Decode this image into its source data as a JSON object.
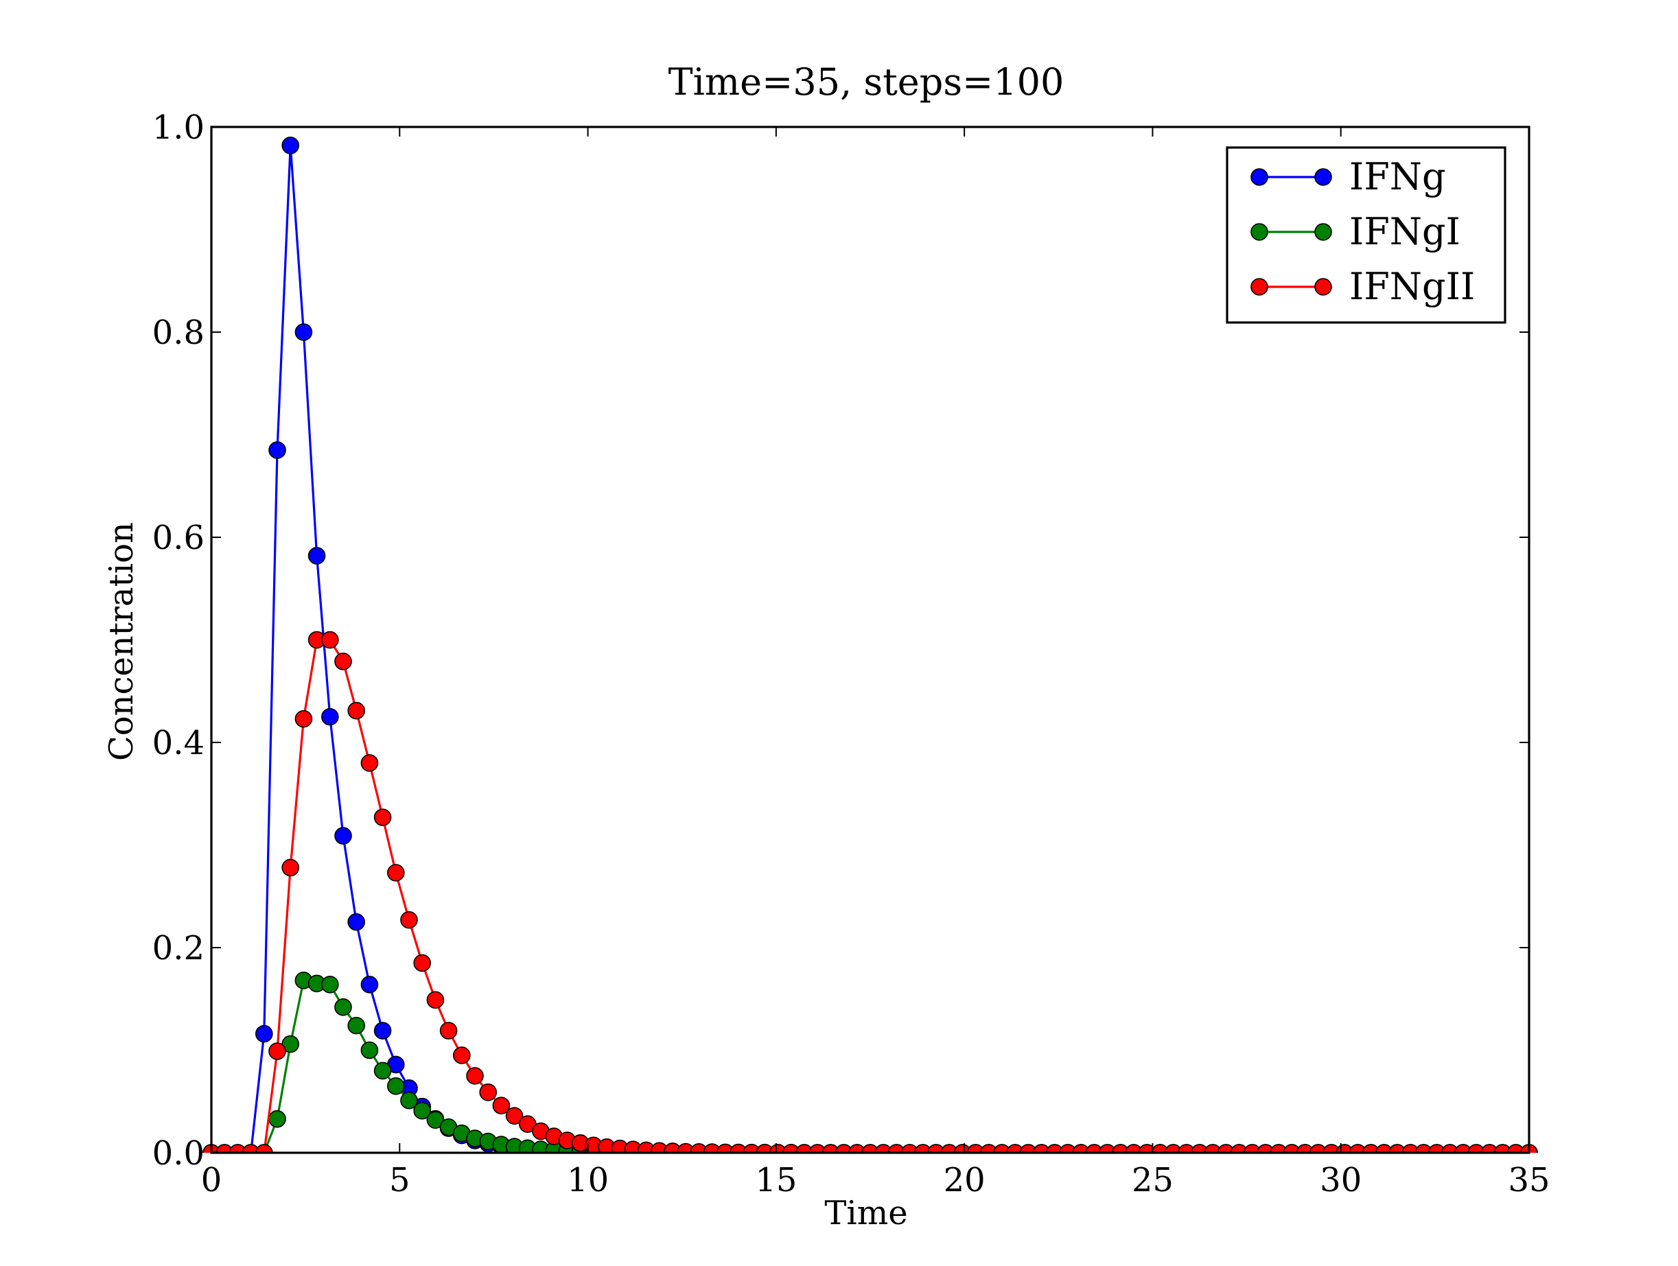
{
  "chart_data": {
    "type": "line",
    "title": "Time=35, steps=100",
    "xlabel": "Time",
    "ylabel": "Concentration",
    "xlim": [
      0,
      35
    ],
    "ylim": [
      0,
      1.0
    ],
    "xticks": [
      0,
      5,
      10,
      15,
      20,
      25,
      30,
      35
    ],
    "xtick_labels": [
      "0",
      "5",
      "10",
      "15",
      "20",
      "25",
      "30",
      "35"
    ],
    "yticks": [
      0,
      0.2,
      0.4,
      0.6,
      0.8,
      1.0
    ],
    "ytick_labels": [
      "0.0",
      "0.2",
      "0.4",
      "0.6",
      "0.8",
      "1.0"
    ],
    "grid": false,
    "legend_position": "top-right",
    "x": [
      0,
      0.35,
      0.7,
      1.05,
      1.4,
      1.75,
      2.1,
      2.45,
      2.8,
      3.15,
      3.5,
      3.85,
      4.2,
      4.55,
      4.9,
      5.25,
      5.6,
      5.95,
      6.3,
      6.65,
      7.0,
      7.35,
      7.7,
      8.05,
      8.4,
      8.75,
      9.1,
      9.45,
      9.8,
      10.15,
      10.5,
      10.85,
      11.2,
      11.55,
      11.9,
      12.25,
      12.6,
      12.95,
      13.3,
      13.65,
      14.0,
      14.35,
      14.7,
      15.05,
      15.4,
      15.75,
      16.1,
      16.45,
      16.8,
      17.15,
      17.5,
      17.85,
      18.2,
      18.55,
      18.9,
      19.25,
      19.6,
      19.95,
      20.3,
      20.65,
      21.0,
      21.35,
      21.7,
      22.05,
      22.4,
      22.75,
      23.1,
      23.45,
      23.8,
      24.15,
      24.5,
      24.85,
      25.2,
      25.55,
      25.9,
      26.25,
      26.6,
      26.95,
      27.3,
      27.65,
      28.0,
      28.35,
      28.7,
      29.05,
      29.4,
      29.75,
      30.1,
      30.45,
      30.8,
      31.15,
      31.5,
      31.85,
      32.2,
      32.55,
      32.9,
      33.25,
      33.6,
      33.95,
      34.3,
      34.65,
      35.0
    ],
    "series": [
      {
        "name": "IFNg",
        "color": "#0000ff",
        "values": [
          0,
          0,
          0,
          0,
          0.116,
          0.685,
          0.982,
          0.8,
          0.582,
          0.425,
          0.309,
          0.225,
          0.164,
          0.119,
          0.086,
          0.063,
          0.045,
          0.033,
          0.024,
          0.017,
          0.012,
          0.009,
          0.006,
          0.004,
          0.003,
          0.002,
          0.0015,
          0.001,
          0.0008,
          0.0006,
          0.0004,
          0.0003,
          0.0002,
          0.0001,
          0.0001,
          0,
          0,
          0,
          0,
          0,
          0,
          0,
          0,
          0,
          0,
          0,
          0,
          0,
          0,
          0,
          0,
          0,
          0,
          0,
          0,
          0,
          0,
          0,
          0,
          0,
          0,
          0,
          0,
          0,
          0,
          0,
          0,
          0,
          0,
          0,
          0,
          0,
          0,
          0,
          0,
          0,
          0,
          0,
          0,
          0,
          0,
          0,
          0,
          0,
          0,
          0,
          0,
          0,
          0,
          0,
          0,
          0,
          0,
          0,
          0,
          0,
          0,
          0,
          0,
          0,
          0
        ]
      },
      {
        "name": "IFNgI",
        "color": "#008000",
        "values": [
          0,
          0,
          0,
          0,
          0,
          0.033,
          0.106,
          0.168,
          0.165,
          0.164,
          0.142,
          0.124,
          0.1,
          0.08,
          0.065,
          0.051,
          0.041,
          0.032,
          0.025,
          0.019,
          0.014,
          0.011,
          0.008,
          0.006,
          0.0045,
          0.0033,
          0.0024,
          0.0018,
          0.0013,
          0.0009,
          0.0007,
          0.0005,
          0.0004,
          0.0003,
          0.0002,
          0.0001,
          0.0001,
          0,
          0,
          0,
          0,
          0,
          0,
          0,
          0,
          0,
          0,
          0,
          0,
          0,
          0,
          0,
          0,
          0,
          0,
          0,
          0,
          0,
          0,
          0,
          0,
          0,
          0,
          0,
          0,
          0,
          0,
          0,
          0,
          0,
          0,
          0,
          0,
          0,
          0,
          0,
          0,
          0,
          0,
          0,
          0,
          0,
          0,
          0,
          0,
          0,
          0,
          0,
          0,
          0,
          0,
          0,
          0,
          0,
          0,
          0,
          0,
          0,
          0,
          0,
          0
        ]
      },
      {
        "name": "IFNgII",
        "color": "#ff0000",
        "values": [
          0,
          0,
          0,
          0,
          0,
          0.099,
          0.278,
          0.423,
          0.5,
          0.5,
          0.479,
          0.431,
          0.38,
          0.327,
          0.273,
          0.227,
          0.185,
          0.149,
          0.119,
          0.095,
          0.075,
          0.059,
          0.046,
          0.036,
          0.028,
          0.021,
          0.016,
          0.012,
          0.0095,
          0.0072,
          0.0055,
          0.0042,
          0.0032,
          0.0024,
          0.0018,
          0.0014,
          0.001,
          0.0008,
          0.0006,
          0.0004,
          0.0003,
          0.0002,
          0.0002,
          0.0001,
          0.0001,
          0,
          0,
          0,
          0,
          0,
          0,
          0,
          0,
          0,
          0,
          0,
          0,
          0,
          0,
          0,
          0,
          0,
          0,
          0,
          0,
          0,
          0,
          0,
          0,
          0,
          0,
          0,
          0,
          0,
          0,
          0,
          0,
          0,
          0,
          0,
          0,
          0,
          0,
          0,
          0,
          0,
          0,
          0,
          0,
          0,
          0,
          0,
          0,
          0,
          0,
          0,
          0,
          0,
          0,
          0,
          0
        ]
      }
    ]
  }
}
